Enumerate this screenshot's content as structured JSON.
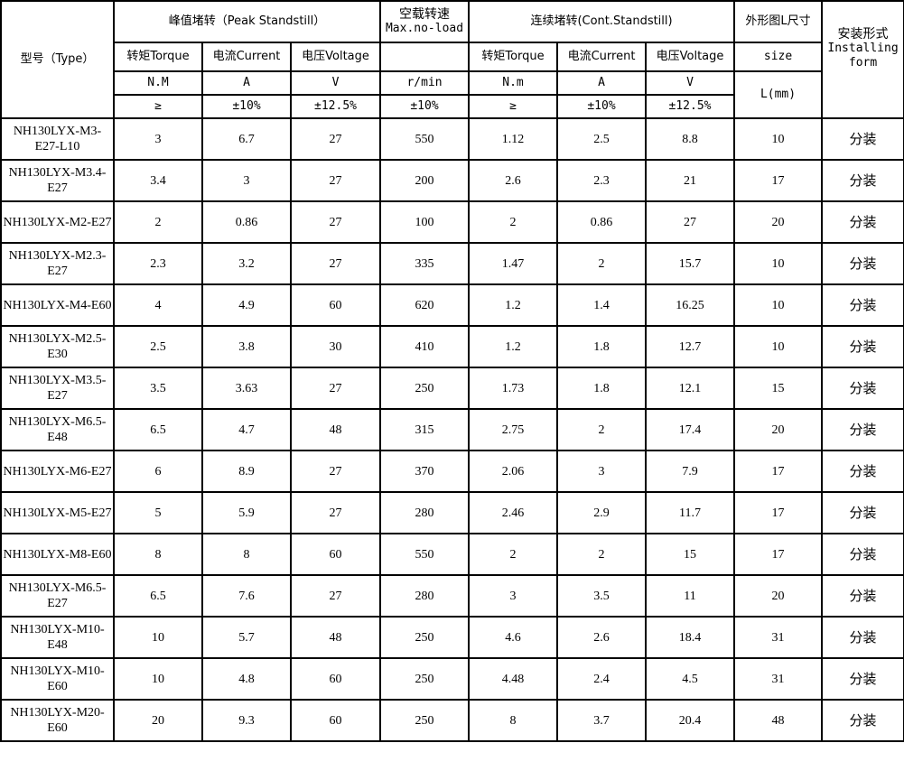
{
  "header": {
    "type": "型号（Type）",
    "peak": "峰值堵转（Peak Standstill）",
    "noload_cn": "空载转速",
    "noload_en": "Max.no-load",
    "cont": "连续堵转(Cont.Standstill)",
    "size_cn": "外形图L尺寸",
    "install_cn": "安装形式",
    "install_en1": "Installing",
    "install_en2": "form",
    "torque": "转矩Torque",
    "current": "电流Current",
    "voltage": "电压Voltage",
    "size": "size",
    "unit_peak": [
      "N.M",
      "A",
      "V",
      "r/min"
    ],
    "unit_cont": [
      "N.m",
      "A",
      "V"
    ],
    "size_unit": "L(mm)",
    "tol_peak": [
      "≥",
      "±10%",
      "±12.5%",
      "±10%"
    ],
    "tol_cont": [
      "≥",
      "±10%",
      "±12.5%"
    ]
  },
  "rows": [
    [
      "NH130LYX-M3-E27-L10",
      "3",
      "6.7",
      "27",
      "550",
      "1.12",
      "2.5",
      "8.8",
      "10",
      "分装"
    ],
    [
      "NH130LYX-M3.4-E27",
      "3.4",
      "3",
      "27",
      "200",
      "2.6",
      "2.3",
      "21",
      "17",
      "分装"
    ],
    [
      "NH130LYX-M2-E27",
      "2",
      "0.86",
      "27",
      "100",
      "2",
      "0.86",
      "27",
      "20",
      "分装"
    ],
    [
      "NH130LYX-M2.3-E27",
      "2.3",
      "3.2",
      "27",
      "335",
      "1.47",
      "2",
      "15.7",
      "10",
      "分装"
    ],
    [
      "NH130LYX-M4-E60",
      "4",
      "4.9",
      "60",
      "620",
      "1.2",
      "1.4",
      "16.25",
      "10",
      "分装"
    ],
    [
      "NH130LYX-M2.5-E30",
      "2.5",
      "3.8",
      "30",
      "410",
      "1.2",
      "1.8",
      "12.7",
      "10",
      "分装"
    ],
    [
      "NH130LYX-M3.5-E27",
      "3.5",
      "3.63",
      "27",
      "250",
      "1.73",
      "1.8",
      "12.1",
      "15",
      "分装"
    ],
    [
      "NH130LYX-M6.5-E48",
      "6.5",
      "4.7",
      "48",
      "315",
      "2.75",
      "2",
      "17.4",
      "20",
      "分装"
    ],
    [
      "NH130LYX-M6-E27",
      "6",
      "8.9",
      "27",
      "370",
      "2.06",
      "3",
      "7.9",
      "17",
      "分装"
    ],
    [
      "NH130LYX-M5-E27",
      "5",
      "5.9",
      "27",
      "280",
      "2.46",
      "2.9",
      "11.7",
      "17",
      "分装"
    ],
    [
      "NH130LYX-M8-E60",
      "8",
      "8",
      "60",
      "550",
      "2",
      "2",
      "15",
      "17",
      "分装"
    ],
    [
      "NH130LYX-M6.5-E27",
      "6.5",
      "7.6",
      "27",
      "280",
      "3",
      "3.5",
      "11",
      "20",
      "分装"
    ],
    [
      "NH130LYX-M10-E48",
      "10",
      "5.7",
      "48",
      "250",
      "4.6",
      "2.6",
      "18.4",
      "31",
      "分装"
    ],
    [
      "NH130LYX-M10-E60",
      "10",
      "4.8",
      "60",
      "250",
      "4.48",
      "2.4",
      "4.5",
      "31",
      "分装"
    ],
    [
      "NH130LYX-M20-E60",
      "20",
      "9.3",
      "60",
      "250",
      "8",
      "3.7",
      "20.4",
      "48",
      "分装"
    ]
  ]
}
